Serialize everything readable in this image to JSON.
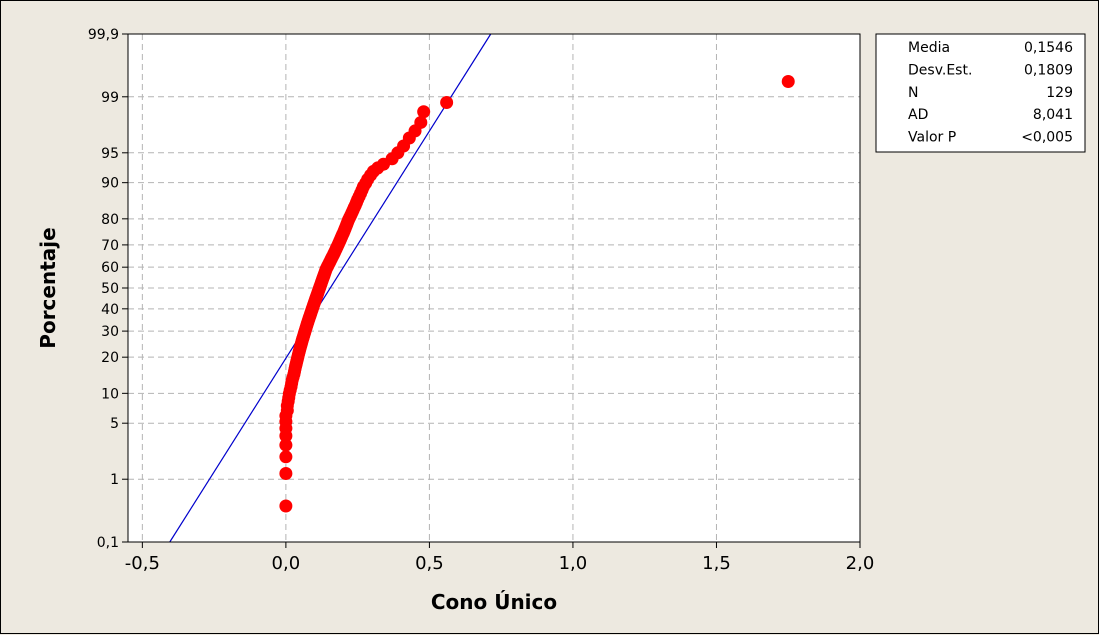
{
  "chart_data": {
    "type": "scatter",
    "subtype": "normal probability plot",
    "title": "",
    "xlabel": "Cono Único",
    "ylabel": "Porcentaje",
    "x_ticks": [
      -0.5,
      0.0,
      0.5,
      1.0,
      1.5,
      2.0
    ],
    "x_tick_labels": [
      "-0,5",
      "0,0",
      "0,5",
      "1,0",
      "1,5",
      "2,0"
    ],
    "xlim": [
      -0.55,
      2.0
    ],
    "y_scale": "normal probability",
    "y_ticks": [
      0.1,
      1,
      5,
      10,
      20,
      30,
      40,
      50,
      60,
      70,
      80,
      90,
      95,
      99,
      99.9
    ],
    "y_tick_labels": [
      "0,1",
      "1",
      "5",
      "10",
      "20",
      "30",
      "40",
      "50",
      "60",
      "70",
      "80",
      "90",
      "95",
      "99",
      "99,9"
    ],
    "ylim": [
      0.1,
      99.9
    ],
    "grid": true,
    "grid_style": "dashed",
    "points": [
      [
        0.0,
        0.4
      ],
      [
        0.0,
        1.2
      ],
      [
        0.0,
        2.0
      ],
      [
        0.0,
        2.8
      ],
      [
        0.0,
        3.6
      ],
      [
        0.0,
        4.4
      ],
      [
        0.0,
        5.2
      ],
      [
        0.0,
        6.0
      ],
      [
        0.005,
        6.8
      ],
      [
        0.005,
        7.6
      ],
      [
        0.008,
        8.4
      ],
      [
        0.01,
        9.1
      ],
      [
        0.012,
        9.9
      ],
      [
        0.015,
        10.7
      ],
      [
        0.018,
        11.5
      ],
      [
        0.02,
        12.3
      ],
      [
        0.022,
        13.1
      ],
      [
        0.025,
        13.9
      ],
      [
        0.028,
        14.7
      ],
      [
        0.03,
        15.5
      ],
      [
        0.032,
        16.3
      ],
      [
        0.034,
        17.1
      ],
      [
        0.036,
        17.8
      ],
      [
        0.038,
        18.6
      ],
      [
        0.04,
        19.4
      ],
      [
        0.042,
        20.2
      ],
      [
        0.044,
        21.0
      ],
      [
        0.046,
        21.8
      ],
      [
        0.048,
        22.6
      ],
      [
        0.05,
        23.4
      ],
      [
        0.052,
        24.2
      ],
      [
        0.054,
        25.0
      ],
      [
        0.056,
        25.8
      ],
      [
        0.058,
        26.6
      ],
      [
        0.06,
        27.3
      ],
      [
        0.062,
        28.1
      ],
      [
        0.064,
        28.9
      ],
      [
        0.066,
        29.7
      ],
      [
        0.068,
        30.5
      ],
      [
        0.07,
        31.3
      ],
      [
        0.072,
        32.1
      ],
      [
        0.074,
        32.9
      ],
      [
        0.076,
        33.7
      ],
      [
        0.078,
        34.5
      ],
      [
        0.08,
        35.3
      ],
      [
        0.082,
        36.1
      ],
      [
        0.084,
        36.8
      ],
      [
        0.086,
        37.6
      ],
      [
        0.088,
        38.4
      ],
      [
        0.09,
        39.2
      ],
      [
        0.092,
        40.0
      ],
      [
        0.094,
        40.8
      ],
      [
        0.096,
        41.6
      ],
      [
        0.098,
        42.4
      ],
      [
        0.1,
        43.2
      ],
      [
        0.102,
        44.0
      ],
      [
        0.104,
        44.8
      ],
      [
        0.106,
        45.6
      ],
      [
        0.108,
        46.3
      ],
      [
        0.11,
        47.1
      ],
      [
        0.112,
        47.9
      ],
      [
        0.114,
        48.7
      ],
      [
        0.116,
        49.5
      ],
      [
        0.118,
        50.3
      ],
      [
        0.12,
        51.1
      ],
      [
        0.122,
        51.9
      ],
      [
        0.124,
        52.7
      ],
      [
        0.126,
        53.5
      ],
      [
        0.128,
        54.3
      ],
      [
        0.13,
        55.1
      ],
      [
        0.132,
        55.8
      ],
      [
        0.134,
        56.6
      ],
      [
        0.136,
        57.4
      ],
      [
        0.138,
        58.2
      ],
      [
        0.14,
        59.0
      ],
      [
        0.143,
        59.8
      ],
      [
        0.146,
        60.6
      ],
      [
        0.149,
        61.4
      ],
      [
        0.152,
        62.2
      ],
      [
        0.155,
        63.0
      ],
      [
        0.158,
        63.8
      ],
      [
        0.161,
        64.6
      ],
      [
        0.164,
        65.3
      ],
      [
        0.167,
        66.1
      ],
      [
        0.17,
        66.9
      ],
      [
        0.173,
        67.7
      ],
      [
        0.176,
        68.5
      ],
      [
        0.179,
        69.3
      ],
      [
        0.182,
        70.1
      ],
      [
        0.185,
        70.9
      ],
      [
        0.188,
        71.7
      ],
      [
        0.191,
        72.5
      ],
      [
        0.194,
        73.3
      ],
      [
        0.197,
        74.1
      ],
      [
        0.2,
        74.8
      ],
      [
        0.203,
        75.6
      ],
      [
        0.206,
        76.4
      ],
      [
        0.209,
        77.2
      ],
      [
        0.212,
        78.0
      ],
      [
        0.215,
        78.8
      ],
      [
        0.218,
        79.6
      ],
      [
        0.222,
        80.4
      ],
      [
        0.226,
        81.2
      ],
      [
        0.23,
        82.0
      ],
      [
        0.234,
        82.8
      ],
      [
        0.238,
        83.6
      ],
      [
        0.242,
        84.3
      ],
      [
        0.246,
        85.1
      ],
      [
        0.25,
        85.9
      ],
      [
        0.255,
        86.7
      ],
      [
        0.26,
        87.5
      ],
      [
        0.265,
        88.3
      ],
      [
        0.27,
        89.1
      ],
      [
        0.278,
        89.9
      ],
      [
        0.285,
        90.7
      ],
      [
        0.295,
        91.5
      ],
      [
        0.305,
        92.2
      ],
      [
        0.32,
        92.8
      ],
      [
        0.34,
        93.4
      ],
      [
        0.37,
        94.2
      ],
      [
        0.39,
        95.0
      ],
      [
        0.41,
        95.8
      ],
      [
        0.43,
        96.6
      ],
      [
        0.45,
        97.2
      ],
      [
        0.47,
        97.8
      ],
      [
        0.48,
        98.4
      ],
      [
        0.56,
        98.8
      ],
      [
        1.75,
        99.4
      ]
    ],
    "fit_line": {
      "mean": 0.1546,
      "stdev": 0.1809,
      "color": "#0000cc"
    },
    "point_color": "#ff0000",
    "stats_box": {
      "position": "top-right",
      "rows": [
        {
          "label": "Media",
          "value": "0,1546"
        },
        {
          "label": "Desv.Est.",
          "value": "0,1809"
        },
        {
          "label": "N",
          "value": "129"
        },
        {
          "label": "AD",
          "value": "8,041"
        },
        {
          "label": "Valor P",
          "value": "<0,005"
        }
      ]
    }
  }
}
